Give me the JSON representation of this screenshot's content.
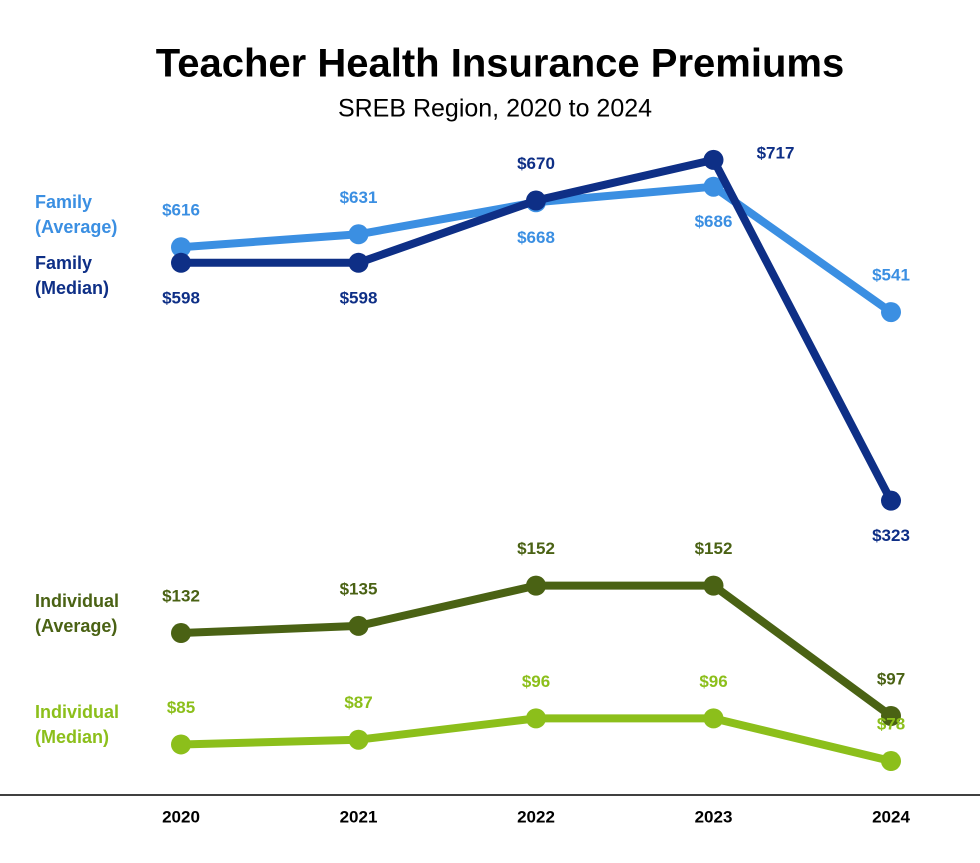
{
  "chart_data": {
    "type": "line",
    "title": "Teacher Health Insurance Premiums",
    "subtitle": "SREB Region, 2020 to 2024",
    "categories": [
      "2020",
      "2021",
      "2022",
      "2023",
      "2024"
    ],
    "ylim": [
      0,
      740
    ],
    "y2lim": [
      70,
      340
    ],
    "series": [
      {
        "name": "Family (Average)",
        "color": "#3b8fe2",
        "values": [
          616,
          631,
          668,
          686,
          541
        ],
        "value_labels": [
          "$616",
          "$631",
          "$668",
          "$686",
          "$541"
        ]
      },
      {
        "name": "Family (Median)",
        "color": "#0e2f86",
        "values": [
          598,
          598,
          670,
          717,
          323
        ],
        "value_labels": [
          "$598",
          "$598",
          "$670",
          "$717",
          "$323"
        ]
      },
      {
        "name": "Individual (Average)",
        "color": "#4a6214",
        "axis": "y2",
        "values": [
          132,
          135,
          152,
          152,
          97
        ],
        "value_labels": [
          "$132",
          "$135",
          "$152",
          "$152",
          "$97"
        ]
      },
      {
        "name": "Individual (Median)",
        "color": "#8cbf1b",
        "axis": "y2",
        "values": [
          85,
          87,
          96,
          96,
          78
        ],
        "value_labels": [
          "$85",
          "$87",
          "$96",
          "$96",
          "$78"
        ]
      }
    ]
  }
}
